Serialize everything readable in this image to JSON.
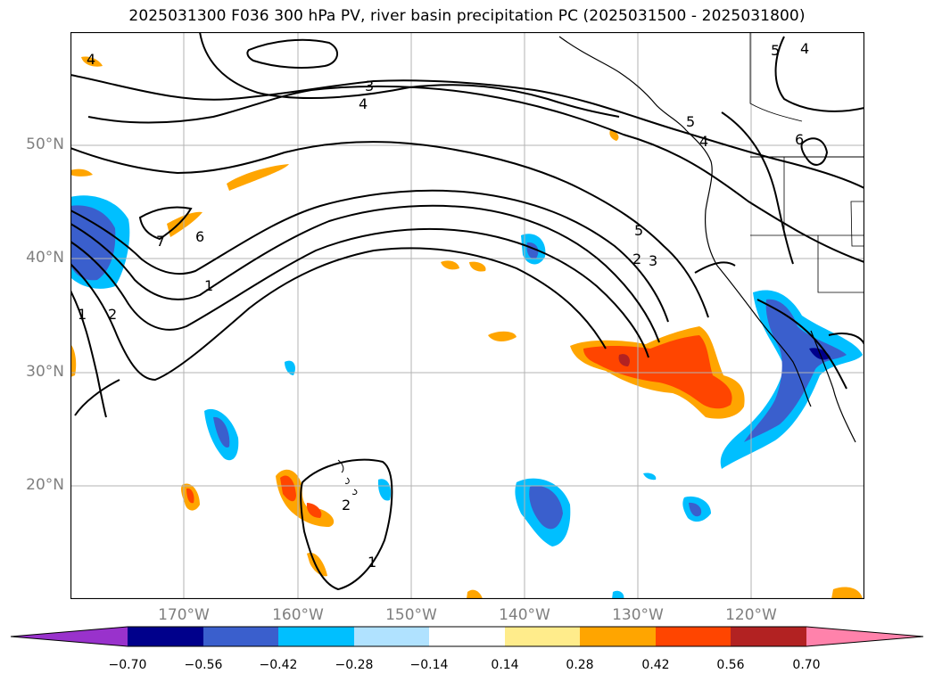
{
  "title": "2025031300 F036 300 hPa PV, river basin precipitation PC (2025031500 - 2025031800)",
  "map": {
    "lat_labels": [
      "50°N",
      "40°N",
      "30°N",
      "20°N"
    ],
    "lon_labels": [
      "170°W",
      "160°W",
      "150°W",
      "140°W",
      "130°W",
      "120°W"
    ],
    "grid": true,
    "contour_labels": [
      "4",
      "3",
      "4",
      "5",
      "4",
      "5",
      "6",
      "4",
      "6",
      "7",
      "5",
      "2",
      "3",
      "1",
      "1",
      "2",
      "1",
      "2"
    ]
  },
  "colorbar": {
    "ticks": [
      "−0.70",
      "−0.56",
      "−0.42",
      "−0.28",
      "−0.14",
      "0.14",
      "0.28",
      "0.42",
      "0.56",
      "0.70"
    ],
    "colors": [
      "#9932cc",
      "#00008b",
      "#3a5fcd",
      "#00bfff",
      "#b0e2ff",
      "#ffffff",
      "#ffec8b",
      "#ffa500",
      "#ff4500",
      "#b22222",
      "#ff82ab"
    ]
  }
}
